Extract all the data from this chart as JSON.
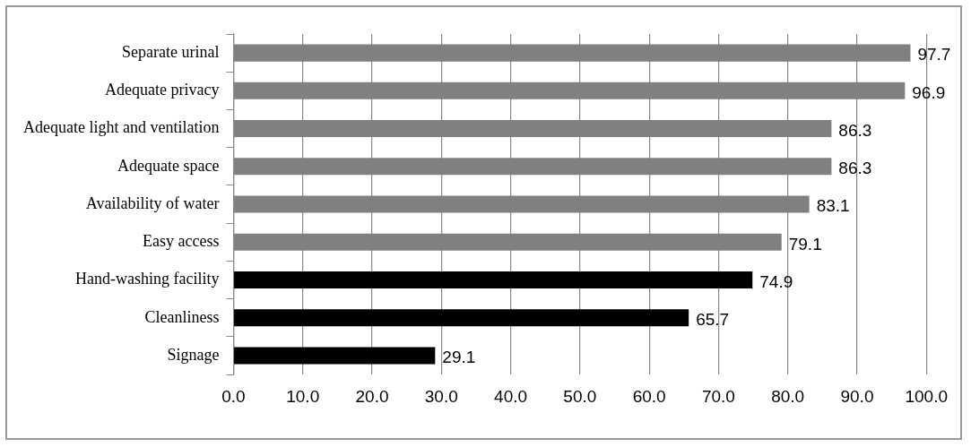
{
  "chart_data": {
    "type": "bar",
    "orientation": "horizontal",
    "categories": [
      "Separate urinal",
      "Adequate privacy",
      "Adequate light and ventilation",
      "Adequate space",
      "Availability of water",
      "Easy access",
      "Hand-washing facility",
      "Cleanliness",
      "Signage"
    ],
    "values": [
      97.7,
      96.9,
      86.3,
      86.3,
      83.1,
      79.1,
      74.9,
      65.7,
      29.1
    ],
    "colors": [
      "#808080",
      "#808080",
      "#808080",
      "#808080",
      "#808080",
      "#808080",
      "#000000",
      "#000000",
      "#000000"
    ],
    "xlim": [
      0,
      100
    ],
    "xticks": [
      {
        "value": 0,
        "label": "0.0"
      },
      {
        "value": 10,
        "label": "10.0"
      },
      {
        "value": 20,
        "label": "20.0"
      },
      {
        "value": 30,
        "label": "30.0"
      },
      {
        "value": 40,
        "label": "40.0"
      },
      {
        "value": 50,
        "label": "50.0"
      },
      {
        "value": 60,
        "label": "60.0"
      },
      {
        "value": 70,
        "label": "70.0"
      },
      {
        "value": 80,
        "label": "80.0"
      },
      {
        "value": 90,
        "label": "90.0"
      },
      {
        "value": 100,
        "label": "100.0"
      }
    ],
    "grid": "x",
    "legend": false,
    "data_labels": true
  }
}
